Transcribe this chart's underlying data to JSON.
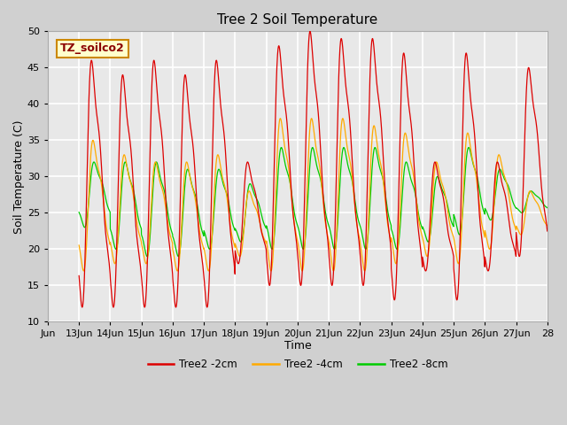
{
  "title": "Tree 2 Soil Temperature",
  "xlabel": "Time",
  "ylabel": "Soil Temperature (C)",
  "ylim": [
    10,
    50
  ],
  "annotation": "TZ_soilco2",
  "xtick_labels": [
    "Jun",
    "13Jun",
    "14Jun",
    "15Jun",
    "16Jun",
    "17Jun",
    "18Jun",
    "19Jun",
    "20Jun",
    "21Jun",
    "22Jun",
    "23Jun",
    "24Jun",
    "25Jun",
    "26Jun",
    "27Jun",
    "28"
  ],
  "xtick_positions": [
    0,
    1,
    2,
    3,
    4,
    5,
    6,
    7,
    8,
    9,
    10,
    11,
    12,
    13,
    14,
    15,
    16
  ],
  "line_colors": [
    "#dd0000",
    "#ffaa00",
    "#00cc00"
  ],
  "line_labels": [
    "Tree2 -2cm",
    "Tree2 -4cm",
    "Tree2 -8cm"
  ],
  "background_color": "#e8e8e8",
  "grid_color": "#ffffff",
  "title_fontsize": 11,
  "axis_label_fontsize": 9,
  "tick_fontsize": 8,
  "n_days": 15,
  "ppd": 240,
  "peaks_2cm": [
    46,
    12,
    44,
    12,
    46,
    12,
    44,
    12,
    46,
    12,
    32,
    18,
    48,
    15,
    50,
    15,
    49,
    15,
    49,
    15,
    47,
    13,
    32,
    17,
    47,
    13,
    32,
    17,
    47,
    14
  ],
  "min_2cm": 12,
  "skew": 0.15,
  "amp_4cm": 8.5,
  "amp_8cm": 5.5,
  "base_4cm": 26,
  "base_8cm": 28,
  "phase_4cm": 0.3,
  "phase_8cm": 0.5
}
